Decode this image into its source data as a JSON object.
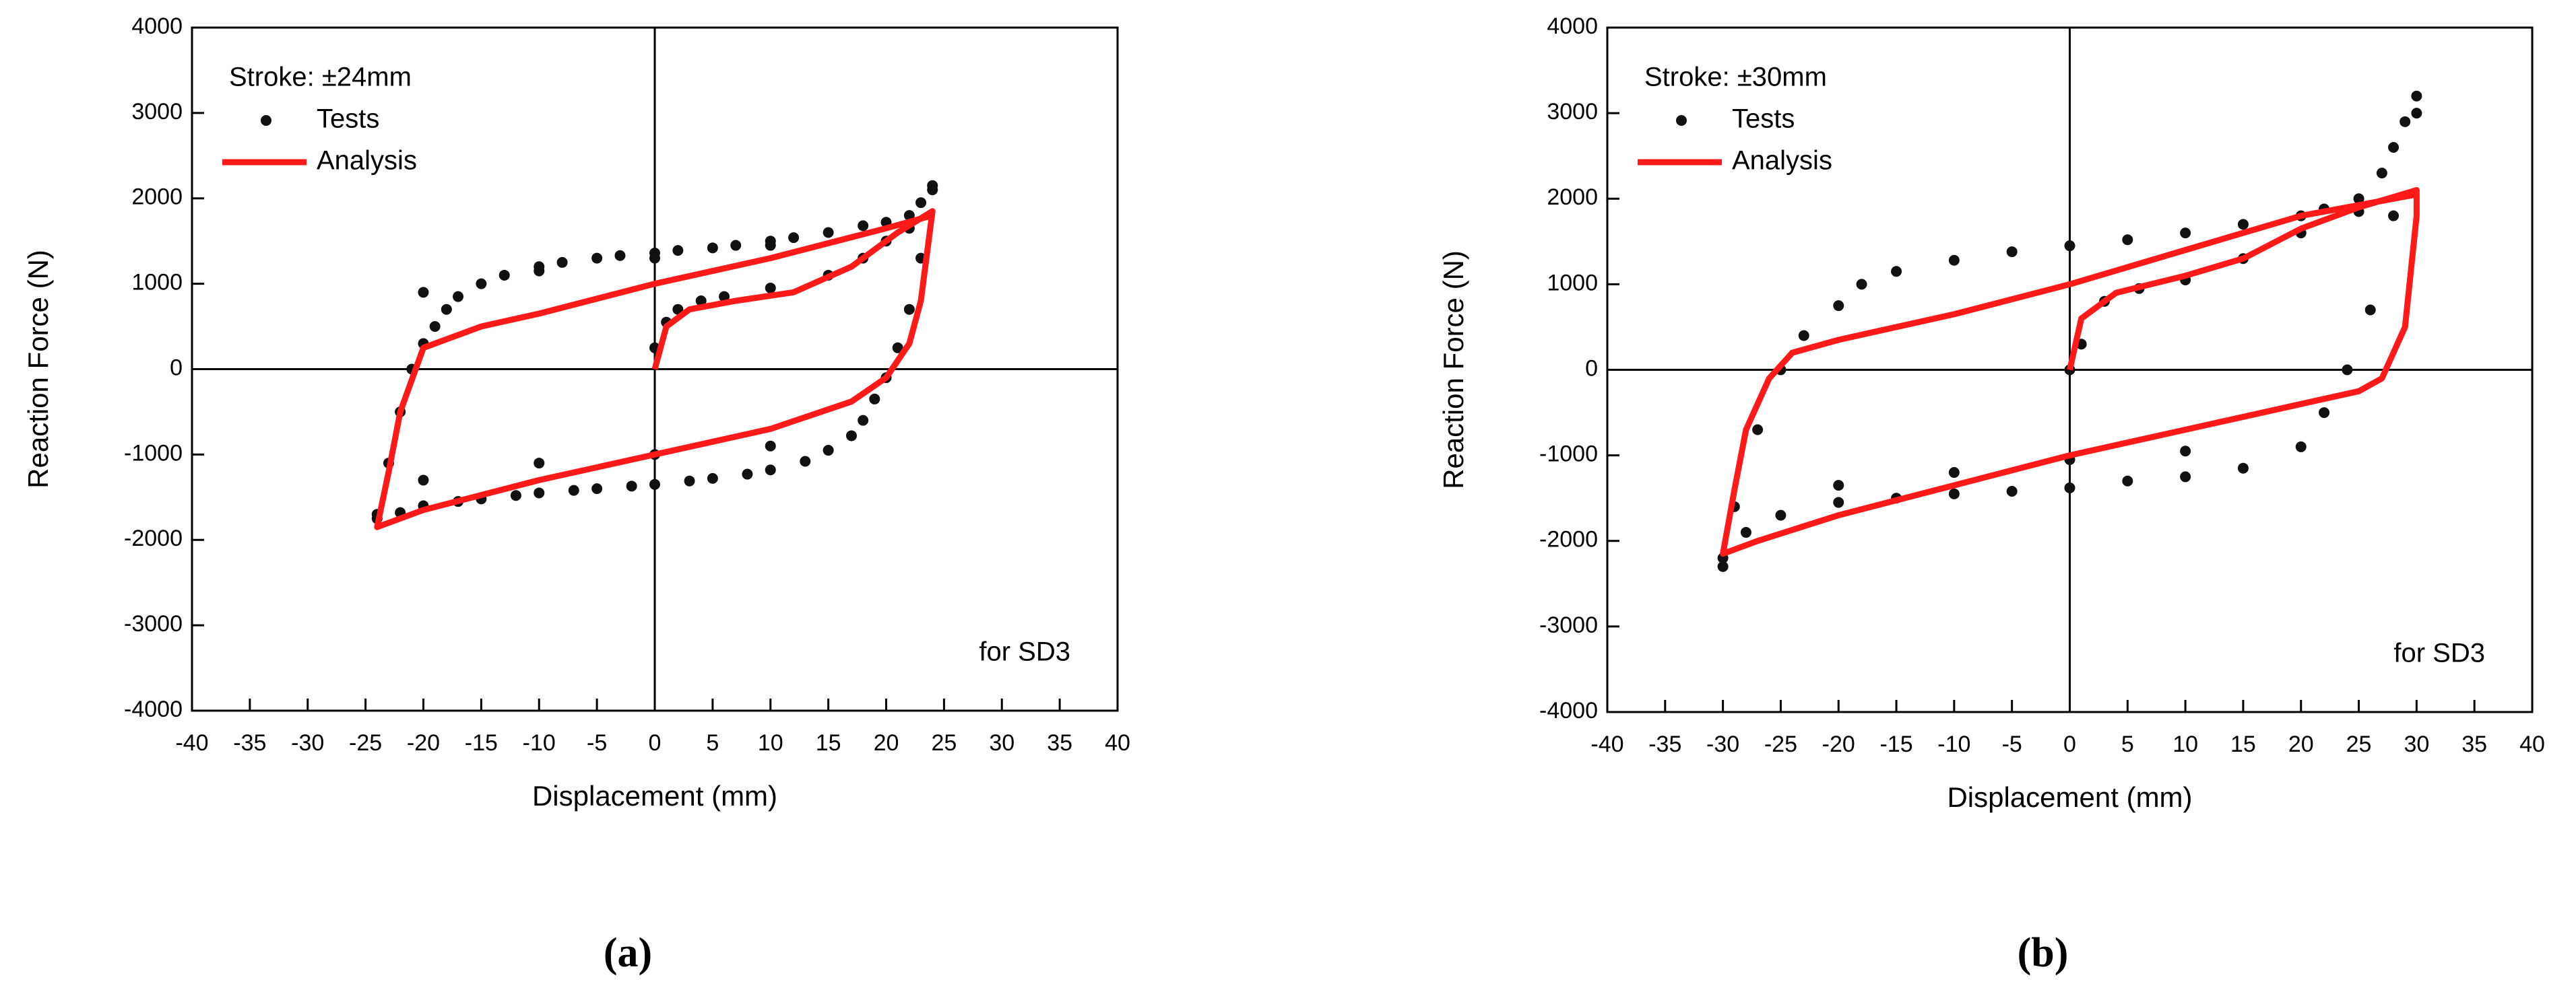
{
  "chart_data": [
    {
      "type": "scatter",
      "panel_label": "(a)",
      "x_label": "Displacement (mm)",
      "y_label": "Reaction Force (N)",
      "legend_title": "Stroke: ±24mm",
      "legend_loc": "upper left",
      "annotation": "for SD3",
      "zero_lines": true,
      "xlim": [
        -40,
        40
      ],
      "xticks": [
        -40,
        -35,
        -30,
        -25,
        -20,
        -15,
        -10,
        -5,
        0,
        5,
        10,
        15,
        20,
        25,
        30,
        35,
        40
      ],
      "ylim": [
        -4000,
        4000
      ],
      "yticks": [
        -4000,
        -3000,
        -2000,
        -1000,
        0,
        1000,
        2000,
        3000,
        4000
      ],
      "series": [
        {
          "name": "Tests",
          "style": "markers",
          "color": "#111111",
          "x": [
            24,
            23,
            22,
            20,
            18,
            15,
            12,
            10,
            7,
            5,
            2,
            0,
            -3,
            -5,
            -8,
            -10,
            -13,
            -15,
            -17,
            -18,
            -19,
            -20,
            -21,
            -22,
            -23,
            -24,
            -24,
            -22,
            -20,
            -17,
            -15,
            -12,
            -10,
            -7,
            -5,
            -2,
            0,
            3,
            5,
            8,
            10,
            13,
            15,
            17,
            18,
            19,
            20,
            21,
            22,
            23,
            24,
            0,
            1,
            2,
            4,
            6,
            10,
            15,
            18,
            20,
            22,
            10,
            0,
            -10,
            -20,
            10,
            0,
            -10,
            -20
          ],
          "values": [
            2150,
            1950,
            1800,
            1720,
            1680,
            1600,
            1540,
            1500,
            1450,
            1420,
            1390,
            1360,
            1330,
            1300,
            1250,
            1200,
            1100,
            1000,
            850,
            700,
            500,
            300,
            0,
            -500,
            -1100,
            -1700,
            -1750,
            -1680,
            -1600,
            -1550,
            -1520,
            -1480,
            -1450,
            -1420,
            -1400,
            -1370,
            -1350,
            -1310,
            -1280,
            -1230,
            -1180,
            -1080,
            -950,
            -780,
            -600,
            -350,
            -100,
            250,
            700,
            1300,
            2100,
            250,
            550,
            700,
            800,
            850,
            950,
            1100,
            1300,
            1500,
            1650,
            1450,
            1300,
            1150,
            900,
            -900,
            -1000,
            -1100,
            -1300
          ]
        },
        {
          "name": "Analysis",
          "style": "line",
          "color": "#ff1a1a",
          "x": [
            0,
            1,
            3,
            7,
            12,
            17,
            21,
            24,
            23,
            22,
            20,
            17,
            10,
            0,
            -10,
            -20,
            -24,
            -23,
            -22,
            -20,
            -15,
            -10,
            0,
            10,
            20,
            24
          ],
          "values": [
            0,
            500,
            700,
            800,
            900,
            1200,
            1600,
            1850,
            800,
            300,
            -100,
            -380,
            -700,
            -1000,
            -1300,
            -1650,
            -1850,
            -1200,
            -500,
            250,
            500,
            650,
            1000,
            1300,
            1650,
            1800
          ]
        }
      ]
    },
    {
      "type": "scatter",
      "panel_label": "(b)",
      "x_label": "Displacement (mm)",
      "y_label": "Reaction Force (N)",
      "legend_title": "Stroke: ±30mm",
      "legend_loc": "upper left",
      "annotation": "for SD3",
      "zero_lines": true,
      "xlim": [
        -40,
        40
      ],
      "xticks": [
        -40,
        -35,
        -30,
        -25,
        -20,
        -15,
        -10,
        -5,
        0,
        5,
        10,
        15,
        20,
        25,
        30,
        35,
        40
      ],
      "ylim": [
        -4000,
        4000
      ],
      "yticks": [
        -4000,
        -3000,
        -2000,
        -1000,
        0,
        1000,
        2000,
        3000,
        4000
      ],
      "series": [
        {
          "name": "Tests",
          "style": "markers",
          "color": "#111111",
          "x": [
            30,
            29,
            28,
            27,
            25,
            22,
            20,
            15,
            10,
            5,
            0,
            -5,
            -10,
            -15,
            -18,
            -20,
            -23,
            -25,
            -27,
            -29,
            -30,
            -30,
            -28,
            -25,
            -20,
            -15,
            -10,
            -5,
            0,
            5,
            10,
            15,
            20,
            22,
            24,
            26,
            28,
            30,
            0,
            1,
            3,
            6,
            10,
            15,
            20,
            25,
            10,
            0,
            -10,
            -20
          ],
          "values": [
            3200,
            2900,
            2600,
            2300,
            2000,
            1880,
            1800,
            1700,
            1600,
            1520,
            1450,
            1380,
            1280,
            1150,
            1000,
            750,
            400,
            0,
            -700,
            -1600,
            -2300,
            -2200,
            -1900,
            -1700,
            -1550,
            -1500,
            -1450,
            -1420,
            -1380,
            -1300,
            -1250,
            -1150,
            -900,
            -500,
            0,
            700,
            1800,
            3000,
            0,
            300,
            800,
            950,
            1050,
            1300,
            1600,
            1850,
            -950,
            -1050,
            -1200,
            -1350
          ]
        },
        {
          "name": "Analysis",
          "style": "line",
          "color": "#ff1a1a",
          "x": [
            0,
            1,
            4,
            10,
            15,
            20,
            25,
            30,
            30,
            29,
            27,
            25,
            20,
            10,
            0,
            -10,
            -20,
            -27,
            -30,
            -29,
            -28,
            -26,
            -24,
            -20,
            -10,
            0,
            10,
            20,
            30
          ],
          "values": [
            0,
            600,
            900,
            1100,
            1300,
            1650,
            1900,
            2100,
            1800,
            500,
            -100,
            -250,
            -400,
            -700,
            -1000,
            -1350,
            -1700,
            -2000,
            -2150,
            -1400,
            -700,
            -100,
            200,
            350,
            650,
            1000,
            1400,
            1800,
            2050
          ]
        }
      ]
    }
  ]
}
